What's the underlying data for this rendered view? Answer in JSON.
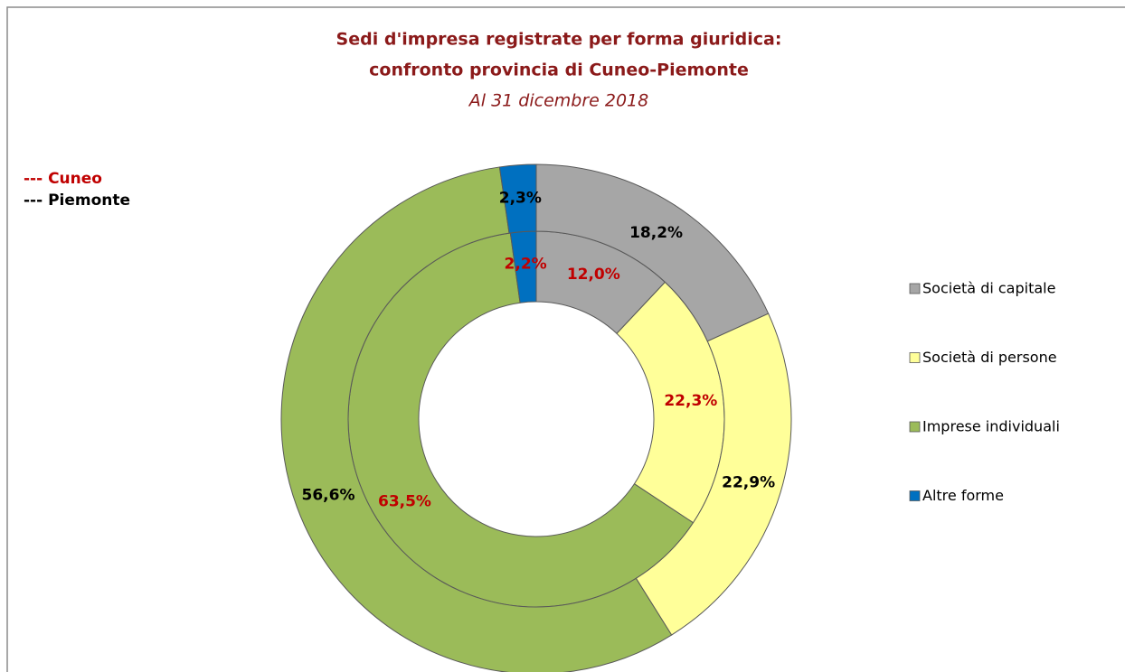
{
  "chart_data": {
    "type": "donut",
    "title": [
      "Sedi d'impresa registrate per forma giuridica:",
      "confronto provincia di Cuneo-Piemonte"
    ],
    "subtitle": "Al 31 dicembre 2018",
    "categories": [
      "Società di capitale",
      "Società di persone",
      "Imprese individuali",
      "Altre forme"
    ],
    "colors": [
      "#a6a6a6",
      "#ffff99",
      "#9bbb59",
      "#0070c0"
    ],
    "legend": "right",
    "series": [
      {
        "name": "--- Cuneo",
        "color": "#c00000",
        "values": [
          12.0,
          22.3,
          63.5,
          2.2
        ],
        "value_labels": [
          "12,0%",
          "22,3%",
          "63,5%",
          "2,2%"
        ]
      },
      {
        "name": "--- Piemonte",
        "color": "#000000",
        "values": [
          18.2,
          22.9,
          56.6,
          2.3
        ],
        "value_labels": [
          "18,2%",
          "22,9%",
          "56,6%",
          "2,3%"
        ]
      }
    ]
  }
}
